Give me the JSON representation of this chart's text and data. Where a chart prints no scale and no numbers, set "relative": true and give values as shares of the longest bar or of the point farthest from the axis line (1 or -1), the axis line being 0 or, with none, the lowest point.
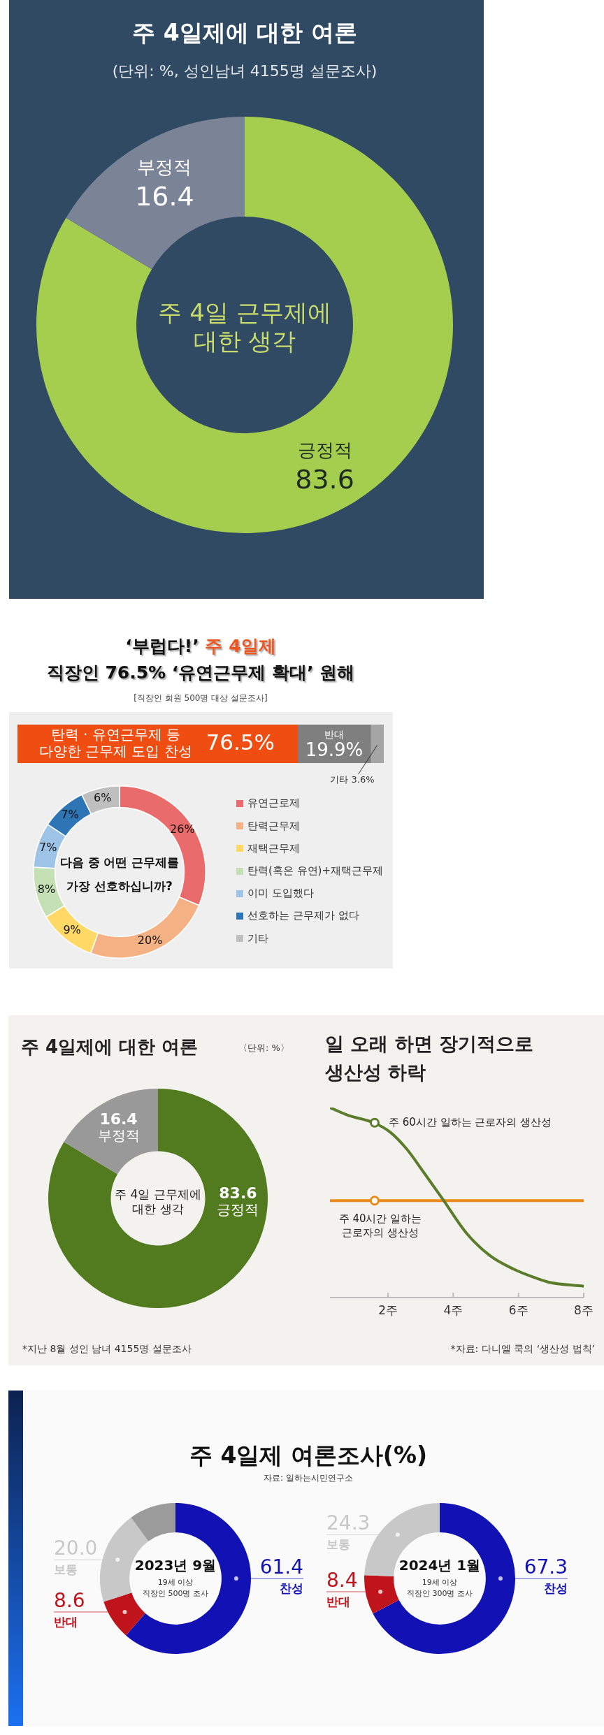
{
  "chart_data": [
    {
      "type": "donut",
      "title": "주 4일제에 대한 여론",
      "subtitle": "(단위: %, 성인남녀 4155명 설문조사)",
      "categories": [
        "긍정적",
        "부정적"
      ],
      "values": [
        83.6,
        16.4
      ],
      "colors": [
        "#a6ce4e",
        "#7b8396"
      ],
      "data_labels": true,
      "annotations": [
        "주 4일 근무제에 대한 생각"
      ]
    },
    {
      "type": "bar",
      "orientation": "horizontal",
      "stacked": true,
      "title": "‘부럽다!’ 주 4일제 직장인 76.5% ‘유연근무제 확대’ 원해",
      "subtitle": "[직장인 회원 500명 대상 설문조사]",
      "categories": [
        null
      ],
      "series": [
        {
          "name": "탄력 · 유연근무제 등 다양한 근무제 도입 찬성",
          "color": "#f04d13",
          "values": [
            76.5
          ],
          "value_labels": [
            "76.5%"
          ]
        },
        {
          "name": "반대",
          "color": "#7f7f7f",
          "values": [
            19.9
          ],
          "value_labels": [
            "19.9%"
          ]
        },
        {
          "name": "기타",
          "color": "#a5a5a5",
          "values": [
            3.6
          ],
          "value_labels": [
            "3.6%"
          ]
        }
      ],
      "xlim": [
        0,
        100
      ],
      "tick_labels": false
    },
    {
      "type": "donut",
      "categories": [
        "유연근로제",
        "탄력근무제",
        "재택근무제",
        "탄력(혹은 유연)+재택근무제",
        "이미 도입했다",
        "선호하는 근무제가 없다",
        "기타"
      ],
      "values": [
        26,
        20,
        9,
        8,
        7,
        7,
        6
      ],
      "colors": [
        "#e96b6b",
        "#f4b183",
        "#ffd966",
        "#c5e0b4",
        "#9dc3e6",
        "#2e75b6",
        "#bfbfbf"
      ],
      "value_labels": [
        "26%",
        "20%",
        "9%",
        "8%",
        "7%",
        "7%",
        "6%"
      ],
      "legend": "right",
      "annotations": [
        "다음 중 어떤 근무제를 가장 선호하십니까?"
      ]
    },
    {
      "type": "donut",
      "title": "주 4일제에 대한 여론",
      "subtitle": "〈단위: %〉",
      "categories": [
        "긍정적",
        "부정적"
      ],
      "values": [
        83.6,
        16.4
      ],
      "colors": [
        "#527a1f",
        "#999999"
      ],
      "data_labels": true,
      "annotations": [
        "주 4일 근무제에 대한 생각",
        "*지난 8월 성인 남녀 4155명 설문조사"
      ]
    },
    {
      "type": "line",
      "relative": true,
      "title": "일 오래 하면 장기적으로 생산성 하락",
      "xlim": [
        0.22,
        8
      ],
      "xticks": [
        {
          "value": 2,
          "label": "2주"
        },
        {
          "value": 4,
          "label": "4주"
        },
        {
          "value": 6,
          "label": "6주"
        },
        {
          "value": 8,
          "label": "8주"
        }
      ],
      "tick_labels": "x",
      "series": [
        {
          "color": "#5b7c2a",
          "x": [
            0.22,
            0.76,
            1.56,
            2.07,
            2.58,
            3.09,
            3.67,
            4.4,
            5.13,
            5.85,
            6.58,
            6.95,
            8
          ],
          "values": [
            1,
            0.96,
            0.92,
            0.87,
            0.78,
            0.66,
            0.52,
            0.34,
            0.22,
            0.15,
            0.1,
            0.08,
            0.06
          ]
        },
        {
          "color": "#e98a1c",
          "x": [
            0.22,
            8
          ],
          "values": [
            0.51,
            0.51
          ]
        }
      ],
      "annotations": [
        {
          "text": "주 60시간 일하는 근로자의 생산성",
          "x": 1.59,
          "y": 0.92
        },
        {
          "text": "주 40시간 일하는 근로자의 생산성",
          "x": 1.59,
          "y": 0.51
        },
        "*자료: 다니엘 쿡의 ‘생산성 법칙’"
      ]
    },
    {
      "type": "donut",
      "title": "주 4일제 여론조사(%)",
      "categories": [
        "찬성",
        "반대",
        "보통",
        null
      ],
      "values": [
        61.4,
        8.6,
        20.0,
        10
      ],
      "colors": [
        "#1212b4",
        "#c0141c",
        "#c8c8c8",
        "#9b9b9b"
      ],
      "value_labels": [
        "61.4",
        "8.6",
        "20.0",
        null
      ],
      "annotations": [
        "자료: 일하는시민연구소",
        "2023년 9월",
        "19세 이상",
        "직장인 500명 조사"
      ]
    },
    {
      "type": "donut",
      "categories": [
        "찬성",
        "반대",
        "보통"
      ],
      "values": [
        67.3,
        8.4,
        24.3
      ],
      "colors": [
        "#1212b4",
        "#c0141c",
        "#c8c8c8"
      ],
      "value_labels": [
        "67.3",
        "8.4",
        "24.3"
      ],
      "annotations": [
        "2024년 1월",
        "19세 이상",
        "직장인 300명 조사"
      ]
    }
  ]
}
